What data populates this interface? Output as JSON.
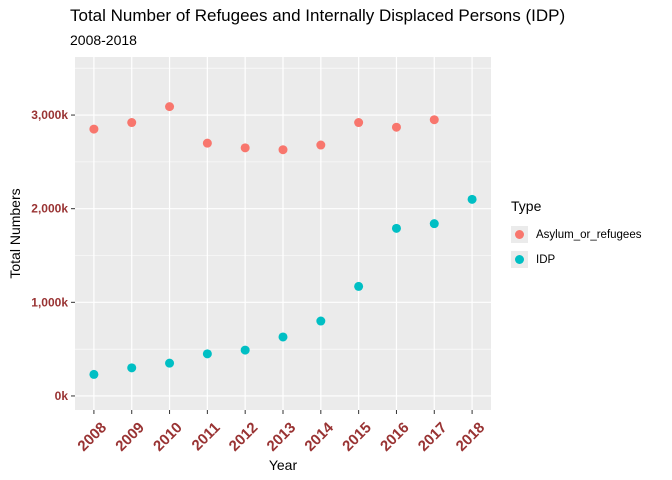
{
  "title": "Total Number of Refugees and Internally Displaced Persons (IDP)",
  "subtitle": "2008-2018",
  "colors": {
    "Asylum_or_refugees": "#F8766D",
    "IDP": "#00BFC4",
    "tick_label": "#993333",
    "panel": "#EBEBEB",
    "grid": "#FFFFFF"
  },
  "chart_data": {
    "type": "scatter",
    "title": "Total Number of Refugees and Internally Displaced Persons (IDP)",
    "subtitle": "2008-2018",
    "xlabel": "Year",
    "ylabel": "Total Numbers",
    "x_categories": [
      "2008",
      "2009",
      "2010",
      "2011",
      "2012",
      "2013",
      "2014",
      "2015",
      "2016",
      "2017",
      "2018"
    ],
    "y_ticks": [
      0,
      1000000,
      2000000,
      3000000
    ],
    "y_tick_labels": [
      "0k",
      "1,000k",
      "2,000k",
      "3,000k"
    ],
    "ylim": [
      -150000,
      3620000
    ],
    "grid": true,
    "legend": {
      "title": "Type",
      "position": "right",
      "entries": [
        "Asylum_or_refugees",
        "IDP"
      ]
    },
    "series": [
      {
        "name": "Asylum_or_refugees",
        "x": [
          "2008",
          "2009",
          "2010",
          "2011",
          "2012",
          "2013",
          "2014",
          "2015",
          "2016",
          "2017"
        ],
        "values": [
          2850000,
          2920000,
          3090000,
          2700000,
          2650000,
          2630000,
          2680000,
          2920000,
          2870000,
          2950000
        ]
      },
      {
        "name": "IDP",
        "x": [
          "2008",
          "2009",
          "2010",
          "2011",
          "2012",
          "2013",
          "2014",
          "2015",
          "2016",
          "2017",
          "2018"
        ],
        "values": [
          230000,
          300000,
          350000,
          450000,
          490000,
          630000,
          800000,
          1170000,
          1790000,
          1840000,
          2100000
        ]
      }
    ]
  }
}
